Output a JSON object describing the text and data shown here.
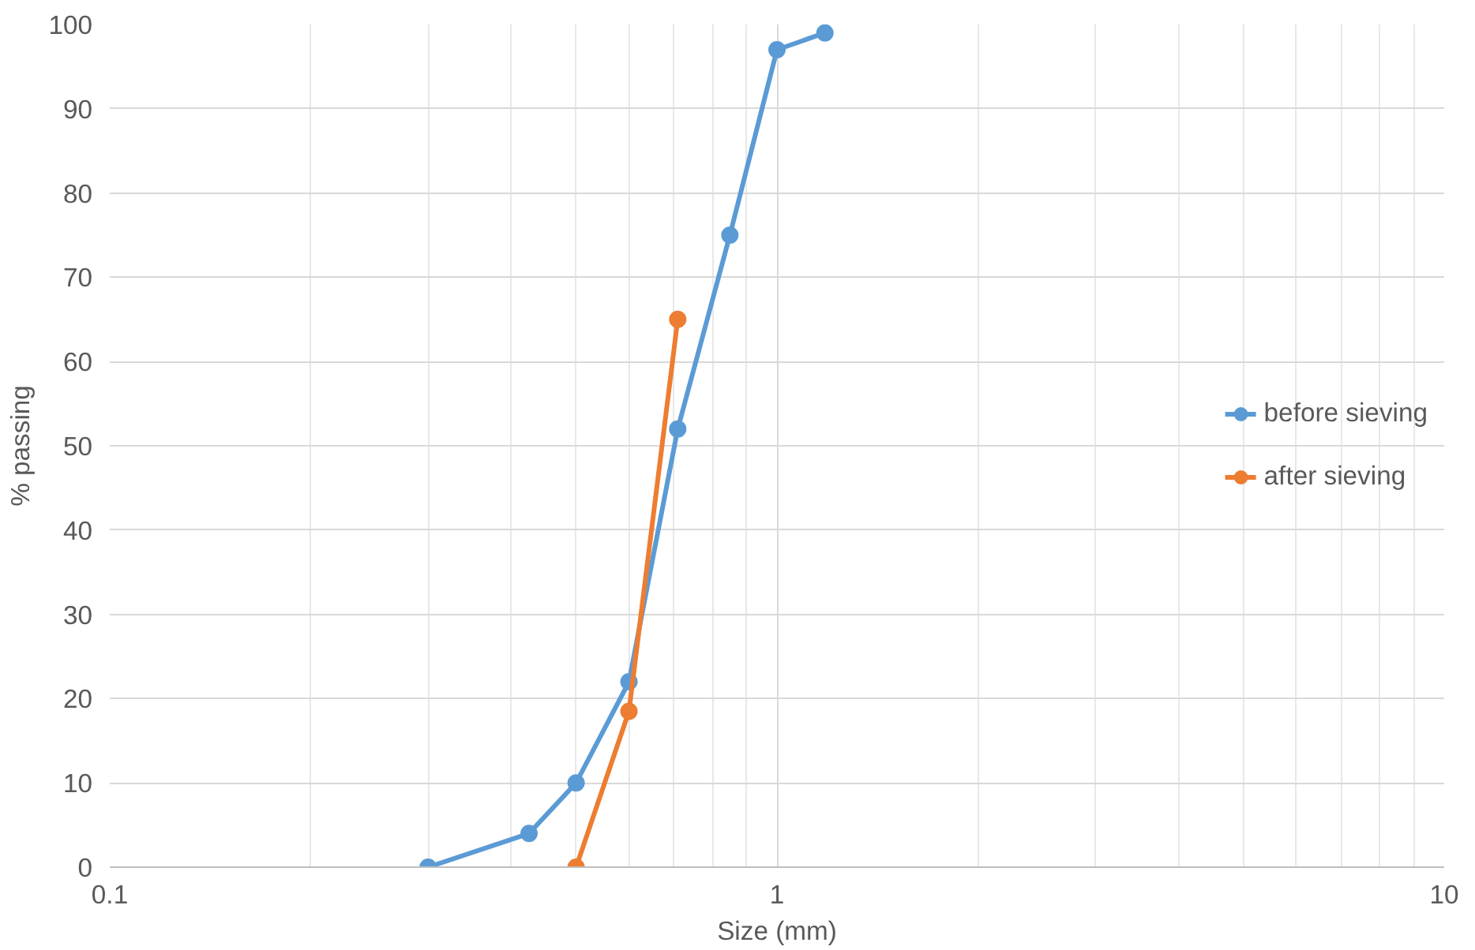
{
  "chart_data": {
    "type": "line",
    "xlabel": "Size (mm)",
    "ylabel": "% passing",
    "log": "x",
    "xlim": [
      0.1,
      10
    ],
    "xticks": [
      0.1,
      1,
      10
    ],
    "ylim": [
      0,
      100
    ],
    "yticks": [
      0,
      10,
      20,
      30,
      40,
      50,
      60,
      70,
      80,
      90,
      100
    ],
    "grid": true,
    "legend": "right",
    "marker": "circle",
    "line_style": "solid",
    "series": [
      {
        "name": "before sieving",
        "color": "#5b9bd5",
        "x": [
          0.3,
          0.425,
          0.5,
          0.6,
          0.71,
          0.85,
          1.0,
          1.18
        ],
        "values": [
          0,
          4,
          10,
          22,
          52,
          75,
          97,
          99
        ]
      },
      {
        "name": "after sieving",
        "color": "#ed7d31",
        "x": [
          0.5,
          0.6,
          0.71
        ],
        "values": [
          0,
          18.5,
          65
        ]
      }
    ]
  }
}
